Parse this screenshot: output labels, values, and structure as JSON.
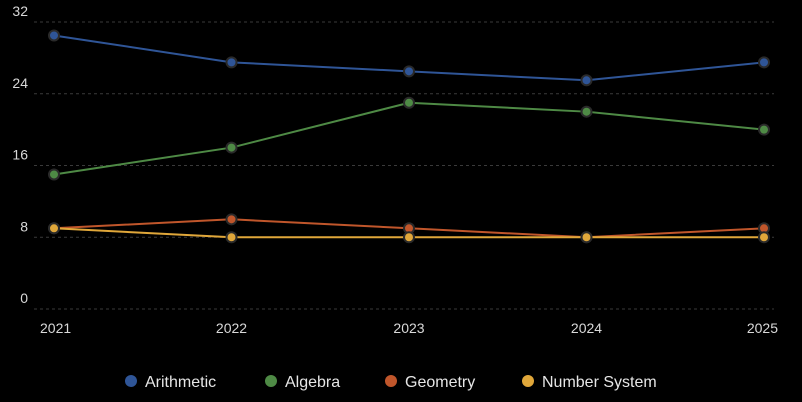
{
  "chart_data": {
    "type": "line",
    "x": [
      "2021",
      "2022",
      "2023",
      "2024",
      "2025"
    ],
    "ylim": [
      0,
      32
    ],
    "yticks": [
      0,
      8,
      16,
      24,
      32
    ],
    "grid": true,
    "legend_position": "bottom",
    "series": [
      {
        "name": "Arithmetic",
        "color": "#2f5597",
        "values": [
          30.5,
          27.5,
          26.5,
          25.5,
          27.5
        ]
      },
      {
        "name": "Algebra",
        "color": "#4e8a45",
        "values": [
          15,
          18,
          23,
          22,
          20
        ]
      },
      {
        "name": "Geometry",
        "color": "#c0562b",
        "values": [
          9,
          10,
          9,
          8,
          9
        ]
      },
      {
        "name": "Number System",
        "color": "#e0a73a",
        "values": [
          9,
          8,
          8,
          8,
          8
        ]
      }
    ]
  }
}
